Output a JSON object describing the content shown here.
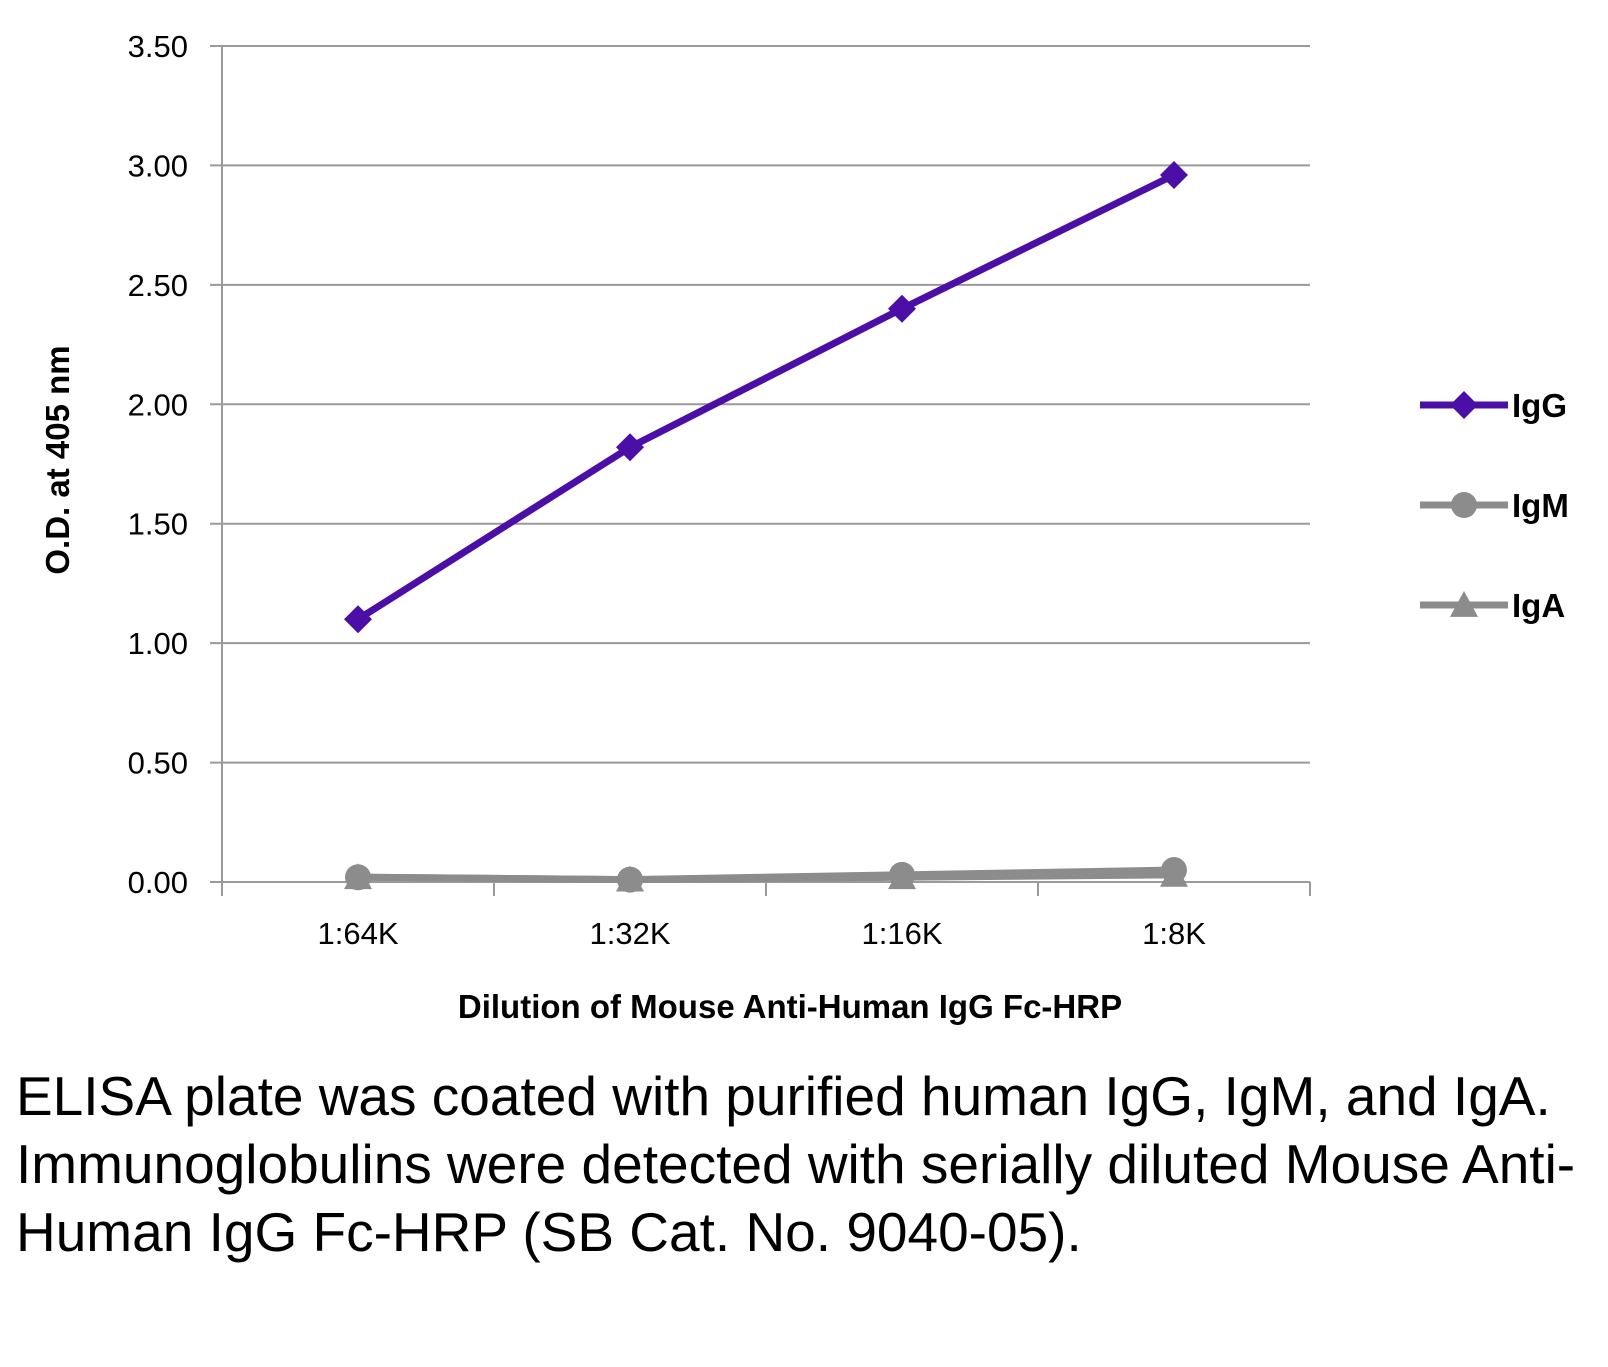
{
  "chart_data": {
    "type": "line",
    "categories": [
      "1:64K",
      "1:32K",
      "1:16K",
      "1:8K"
    ],
    "series": [
      {
        "name": "IgG",
        "values": [
          1.1,
          1.82,
          2.4,
          2.96
        ],
        "color": "#4B0FA8",
        "marker": "diamond"
      },
      {
        "name": "IgM",
        "values": [
          0.02,
          0.01,
          0.03,
          0.05
        ],
        "color": "#8C8C8C",
        "marker": "circle"
      },
      {
        "name": "IgA",
        "values": [
          0.02,
          0.01,
          0.02,
          0.03
        ],
        "color": "#8C8C8C",
        "marker": "triangle"
      }
    ],
    "ylim": [
      0,
      3.5
    ],
    "yticks": [
      "0.00",
      "0.50",
      "1.00",
      "1.50",
      "2.00",
      "2.50",
      "3.00",
      "3.50"
    ],
    "xlabel": "Dilution of Mouse Anti-Human IgG Fc-HRP",
    "ylabel": "O.D. at 405 nm",
    "grid": true,
    "legend_position": "right"
  },
  "caption": "ELISA plate was coated with purified human IgG, IgM, and IgA.  Immunoglobulins were detected with serially diluted Mouse Anti-Human IgG Fc-HRP (SB Cat. No. 9040-05)."
}
